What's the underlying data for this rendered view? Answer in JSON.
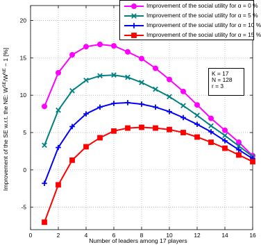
{
  "chart_data": {
    "type": "line",
    "xlabel": "Number of leaders among 17 players",
    "ylabel": "Improvement of the SE w.r.t. the NE: W",
    "ylabel_sup1": "SE",
    "ylabel_mid": "/W",
    "ylabel_sup2": "NE",
    "ylabel_tail": " − 1 [%]",
    "xlim": [
      0,
      16
    ],
    "ylim": [
      -8,
      22
    ],
    "xticks": [
      "0",
      "2",
      "4",
      "6",
      "8",
      "10",
      "12",
      "14",
      "16"
    ],
    "yticks": [
      "-5",
      "0",
      "5",
      "10",
      "15",
      "20"
    ],
    "grid": true,
    "legend_position": "top-right",
    "x": [
      1,
      2,
      3,
      4,
      5,
      6,
      7,
      8,
      9,
      10,
      11,
      12,
      13,
      14,
      15,
      16
    ],
    "series": [
      {
        "name": "Improvement of the social utility for α = 0 %",
        "color": "#ff00ff",
        "marker": "circle",
        "values": [
          8.5,
          13.0,
          15.4,
          16.5,
          16.8,
          16.6,
          15.8,
          14.9,
          13.6,
          12.1,
          10.5,
          8.7,
          6.9,
          5.3,
          3.7,
          1.9
        ]
      },
      {
        "name": "Improvement of the social utility for α = 5 %",
        "color": "#008080",
        "marker": "x",
        "values": [
          3.3,
          8.0,
          10.6,
          12.0,
          12.6,
          12.7,
          12.4,
          11.7,
          10.8,
          9.8,
          8.6,
          7.3,
          5.9,
          4.6,
          3.2,
          1.8
        ]
      },
      {
        "name": "Improvement of the social utility for α = 10 %",
        "color": "#0000ff",
        "marker": "plus",
        "values": [
          -1.8,
          3.0,
          5.8,
          7.5,
          8.4,
          8.9,
          9.0,
          8.8,
          8.4,
          7.8,
          7.0,
          6.1,
          5.1,
          3.9,
          2.7,
          1.5
        ]
      },
      {
        "name": "Improvement of the social utility for α = 15 %",
        "color": "#ff0000",
        "marker": "square",
        "values": [
          -7.0,
          -2.0,
          1.3,
          3.1,
          4.3,
          5.2,
          5.6,
          5.7,
          5.6,
          5.4,
          5.0,
          4.4,
          3.7,
          2.9,
          2.0,
          1.1
        ]
      }
    ]
  },
  "params": [
    "K  = 17",
    "N  = 128",
    "r   = 3"
  ]
}
